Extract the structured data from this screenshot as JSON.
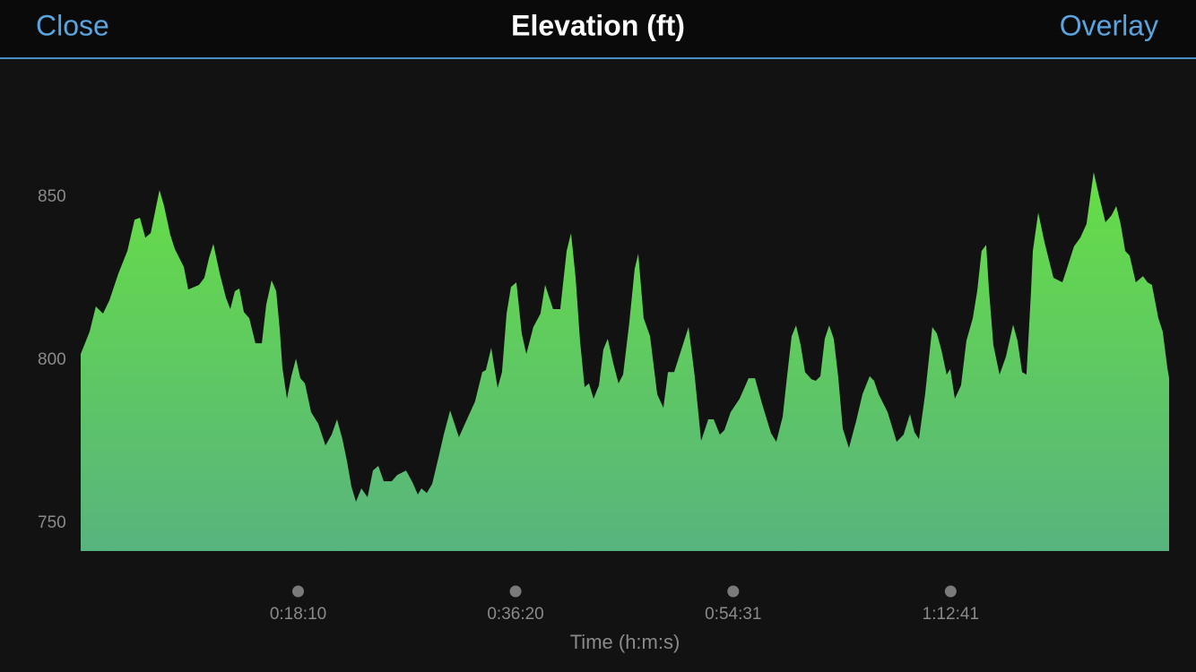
{
  "header": {
    "left_button": "Close",
    "title": "Elevation (ft)",
    "right_button": "Overlay"
  },
  "chart_data": {
    "type": "area",
    "x_label": "Time (h:m:s)",
    "color": "#66de45",
    "xlim": [
      0,
      5456
    ],
    "ylim": [
      741.5,
      888.5
    ],
    "yticks": [
      750,
      800,
      850
    ],
    "xticks": [
      {
        "value": 1090,
        "label": "0:18:10"
      },
      {
        "value": 2180,
        "label": "0:36:20"
      },
      {
        "value": 3271,
        "label": "0:54:31"
      },
      {
        "value": 4361,
        "label": "1:12:41"
      }
    ],
    "x": [
      0,
      45,
      76,
      112,
      144,
      189,
      234,
      270,
      297,
      324,
      351,
      395,
      418,
      449,
      472,
      517,
      539,
      593,
      620,
      643,
      665,
      697,
      728,
      750,
      773,
      795,
      818,
      845,
      876,
      908,
      930,
      957,
      980,
      998,
      1011,
      1034,
      1056,
      1079,
      1101,
      1124,
      1155,
      1191,
      1227,
      1258,
      1285,
      1312,
      1335,
      1357,
      1380,
      1407,
      1438,
      1465,
      1492,
      1519,
      1559,
      1586,
      1631,
      1663,
      1690,
      1708,
      1735,
      1762,
      1789,
      1820,
      1852,
      1896,
      1932,
      1977,
      2013,
      2031,
      2058,
      2090,
      2112,
      2135,
      2157,
      2184,
      2211,
      2234,
      2269,
      2305,
      2328,
      2368,
      2404,
      2436,
      2458,
      2481,
      2503,
      2526,
      2548,
      2571,
      2598,
      2620,
      2642,
      2669,
      2696,
      2719,
      2750,
      2777,
      2795,
      2822,
      2854,
      2890,
      2921,
      2944,
      2975,
      3011,
      3047,
      3078,
      3110,
      3146,
      3173,
      3204,
      3227,
      3258,
      3303,
      3348,
      3380,
      3415,
      3460,
      3487,
      3519,
      3541,
      3564,
      3586,
      3609,
      3631,
      3663,
      3685,
      3708,
      3730,
      3752,
      3775,
      3797,
      3820,
      3851,
      3887,
      3919,
      3955,
      3977,
      4000,
      4045,
      4090,
      4125,
      4157,
      4179,
      4202,
      4233,
      4269,
      4292,
      4314,
      4341,
      4359,
      4382,
      4413,
      4440,
      4472,
      4494,
      4516,
      4539,
      4552,
      4575,
      4606,
      4638,
      4674,
      4696,
      4719,
      4741,
      4764,
      4773,
      4800,
      4831,
      4876,
      4921,
      4943,
      4979,
      5011,
      5042,
      5078,
      5101,
      5137,
      5168,
      5191,
      5213,
      5236,
      5258,
      5289,
      5325,
      5348,
      5370,
      5402,
      5424,
      5447,
      5456
    ],
    "values": [
      801.9,
      808.8,
      816.5,
      814.3,
      818.4,
      826.6,
      833.5,
      843.1,
      843.7,
      837.6,
      839,
      852.2,
      847.3,
      838.5,
      834.1,
      828.6,
      821.7,
      823.1,
      825.3,
      831.3,
      835.7,
      826.6,
      819.2,
      815.7,
      821.2,
      822,
      814.8,
      812.9,
      805.2,
      805.2,
      817,
      824.5,
      821.2,
      809.3,
      797.8,
      788.2,
      795.1,
      800.5,
      794.5,
      792.9,
      784.1,
      780.5,
      773.9,
      777.2,
      781.9,
      775.8,
      769,
      761.3,
      756.6,
      760.7,
      758,
      766.2,
      767.6,
      762.9,
      762.9,
      764.8,
      766.2,
      762.6,
      758.8,
      760.7,
      759.3,
      762.1,
      769,
      777.2,
      784.6,
      776.4,
      781.3,
      787.4,
      796.4,
      797,
      803.8,
      791.5,
      796.4,
      814.3,
      822.5,
      823.9,
      808.2,
      801.9,
      810.2,
      814.3,
      823.1,
      815.7,
      815.7,
      833.5,
      839,
      825.3,
      806,
      791.8,
      792.9,
      788.2,
      792.3,
      803.3,
      806.6,
      799.2,
      792.9,
      795.6,
      811.5,
      828,
      832.7,
      812.9,
      807.4,
      789.6,
      785.4,
      796.4,
      796.4,
      803.3,
      810.2,
      795.1,
      775.3,
      781.9,
      781.9,
      777.2,
      778.6,
      784.1,
      788.2,
      794.5,
      794.5,
      786.8,
      777.7,
      775,
      782.7,
      795.1,
      807.4,
      810.7,
      804.7,
      796.4,
      794.2,
      793.7,
      795.1,
      806.6,
      810.7,
      806.6,
      795.1,
      779.1,
      773.1,
      781.3,
      789.6,
      795.1,
      793.7,
      789.6,
      784.1,
      775,
      777.2,
      783.5,
      778,
      775.8,
      789.6,
      810.2,
      808.2,
      803.3,
      795.6,
      797.3,
      788.2,
      792.3,
      806,
      812.9,
      821.2,
      833.5,
      835.4,
      822.5,
      804.7,
      795.6,
      801.1,
      810.9,
      806,
      796.4,
      795.6,
      821.2,
      833.5,
      845.3,
      836.3,
      825.3,
      823.9,
      828,
      834.9,
      837.6,
      841.8,
      857.7,
      851.4,
      842.3,
      844.5,
      847.3,
      841.8,
      833.5,
      832.1,
      823.9,
      825.8,
      823.9,
      823.1,
      812.9,
      808.8,
      797.8,
      794.5
    ]
  }
}
